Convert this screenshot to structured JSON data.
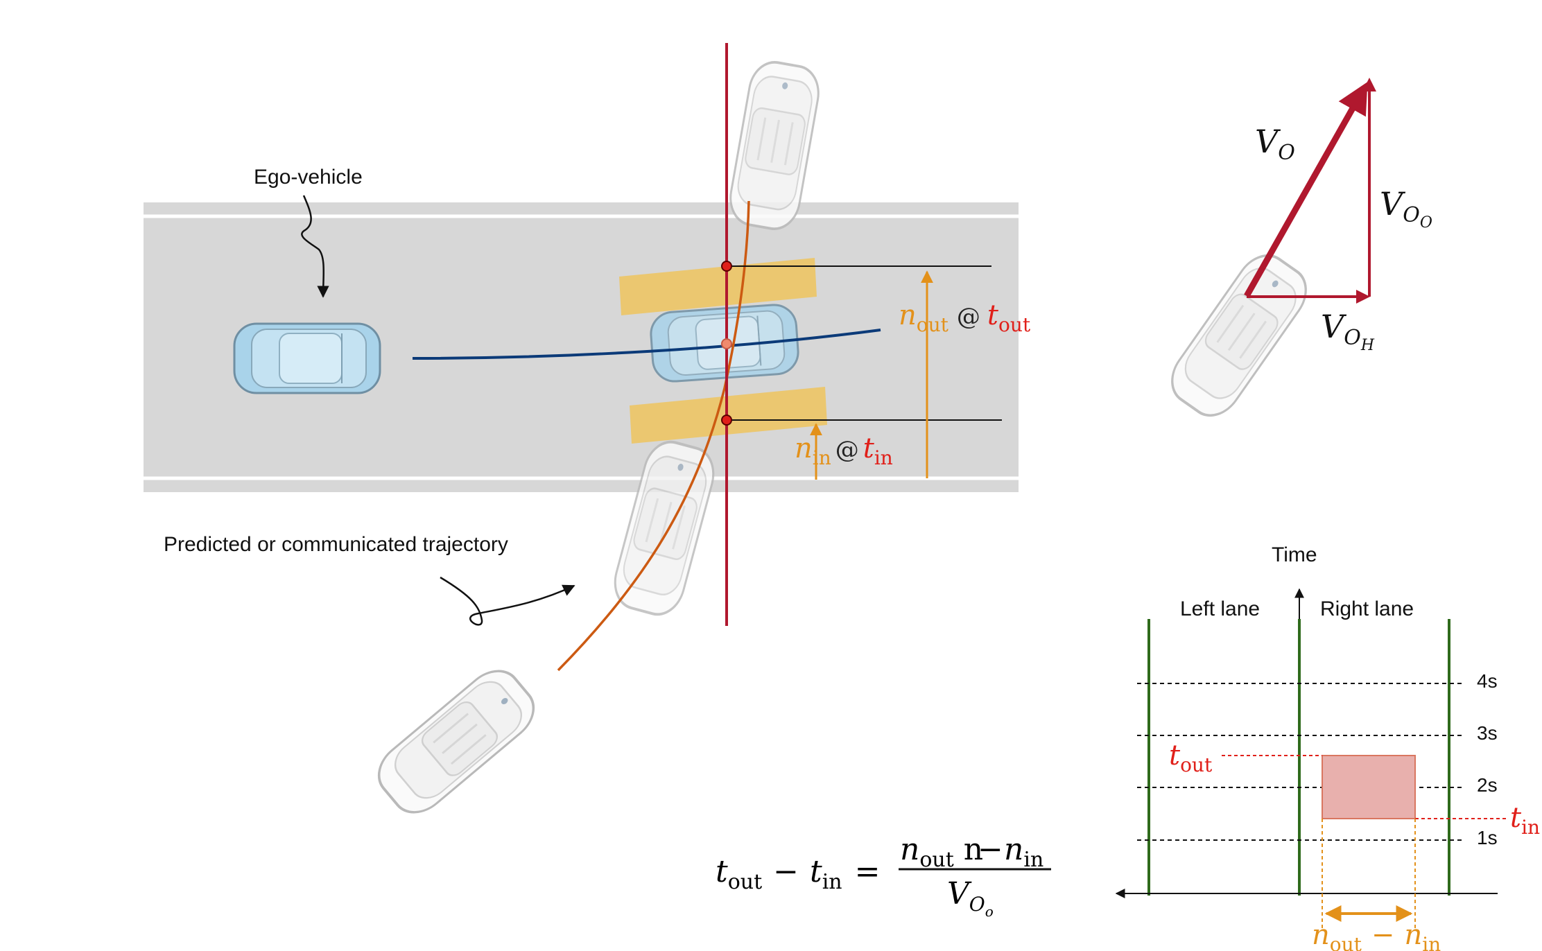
{
  "labels": {
    "ego_vehicle": "Ego-vehicle",
    "trajectory": "Predicted or communicated trajectory",
    "n_out": "n",
    "n_out_sub": "out",
    "at_symbol": "@",
    "t_out": "t",
    "t_out_sub": "out",
    "n_in": "n",
    "n_in_sub": "in",
    "t_in": "t",
    "t_in_sub": "in"
  },
  "vectors": {
    "v": "V",
    "v_sub": "O",
    "vo": "V",
    "vo_sub": "O",
    "vo_subsub": "O",
    "vh": "V",
    "vh_sub": "O",
    "vh_subsub": "H"
  },
  "equation": {
    "lhs_t1": "t",
    "lhs_t1_sub": "out",
    "minus": "−",
    "lhs_t2": "t",
    "lhs_t2_sub": "in",
    "equals": "=",
    "num_n1": "n",
    "num_n1_sub": "out",
    "num_n2": "n",
    "num_n2_sub": "in",
    "den": "V",
    "den_sub": "O",
    "den_subsub": "o"
  },
  "timeline": {
    "axis_title": "Time",
    "left_lane": "Left lane",
    "right_lane": "Right lane",
    "ticks": [
      "4s",
      "3s",
      "2s",
      "1s"
    ],
    "t_out": "t",
    "t_out_sub": "out",
    "t_in": "t",
    "t_in_sub": "in",
    "span_n1": "n",
    "span_n1_sub": "out",
    "span_minus": "−",
    "span_n2": "n",
    "span_n2_sub": "in"
  },
  "colors": {
    "road": "#d7d7d7",
    "ego_blue": "#a9d3ea",
    "trajectory_blue": "#0b3a78",
    "trajectory_orange": "#cc5a12",
    "crossing_red": "#b0182e",
    "highlight_orange": "#f2c14e",
    "annotation_orange": "#e3911a",
    "label_red": "#e0201a",
    "lane_green": "#2f6b1c",
    "occupancy_fill": "#e8b0ad"
  }
}
